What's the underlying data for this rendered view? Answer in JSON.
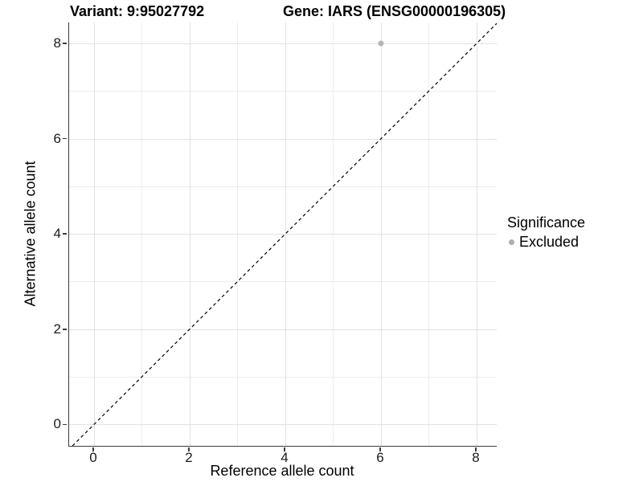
{
  "chart_data": {
    "type": "scatter",
    "title_left": "Variant: 9:95027792",
    "title_right": "Gene: IARS (ENSG00000196305)",
    "xlabel": "Reference allele count",
    "ylabel": "Alternative allele count",
    "xlim": [
      -0.52,
      8.42
    ],
    "ylim": [
      -0.45,
      8.44
    ],
    "xticks": [
      0,
      2,
      4,
      6,
      8
    ],
    "yticks": [
      0,
      2,
      4,
      6,
      8
    ],
    "minor_xgrid": [
      1,
      3,
      5,
      7
    ],
    "minor_ygrid": [
      1,
      3,
      5,
      7
    ],
    "grid": "on",
    "identity_line": {
      "equation": "y = x",
      "style": "dashed",
      "color": "#000000"
    },
    "series": [
      {
        "name": "Excluded",
        "color": "#b4b4b4",
        "points": [
          {
            "x": 6,
            "y": 8
          }
        ]
      }
    ],
    "legend": {
      "title": "Significance",
      "position": "right",
      "items": [
        {
          "label": "Excluded",
          "color": "#aeaeae"
        }
      ]
    }
  },
  "colors": {
    "background": "#ffffff",
    "axis_line": "#3c3c3c",
    "grid_major": "#e2e2e2",
    "grid_minor": "#ededed",
    "tick_label": "#1a1a1a",
    "title_text": "#000000",
    "point_excluded": "#b4b4b4"
  }
}
